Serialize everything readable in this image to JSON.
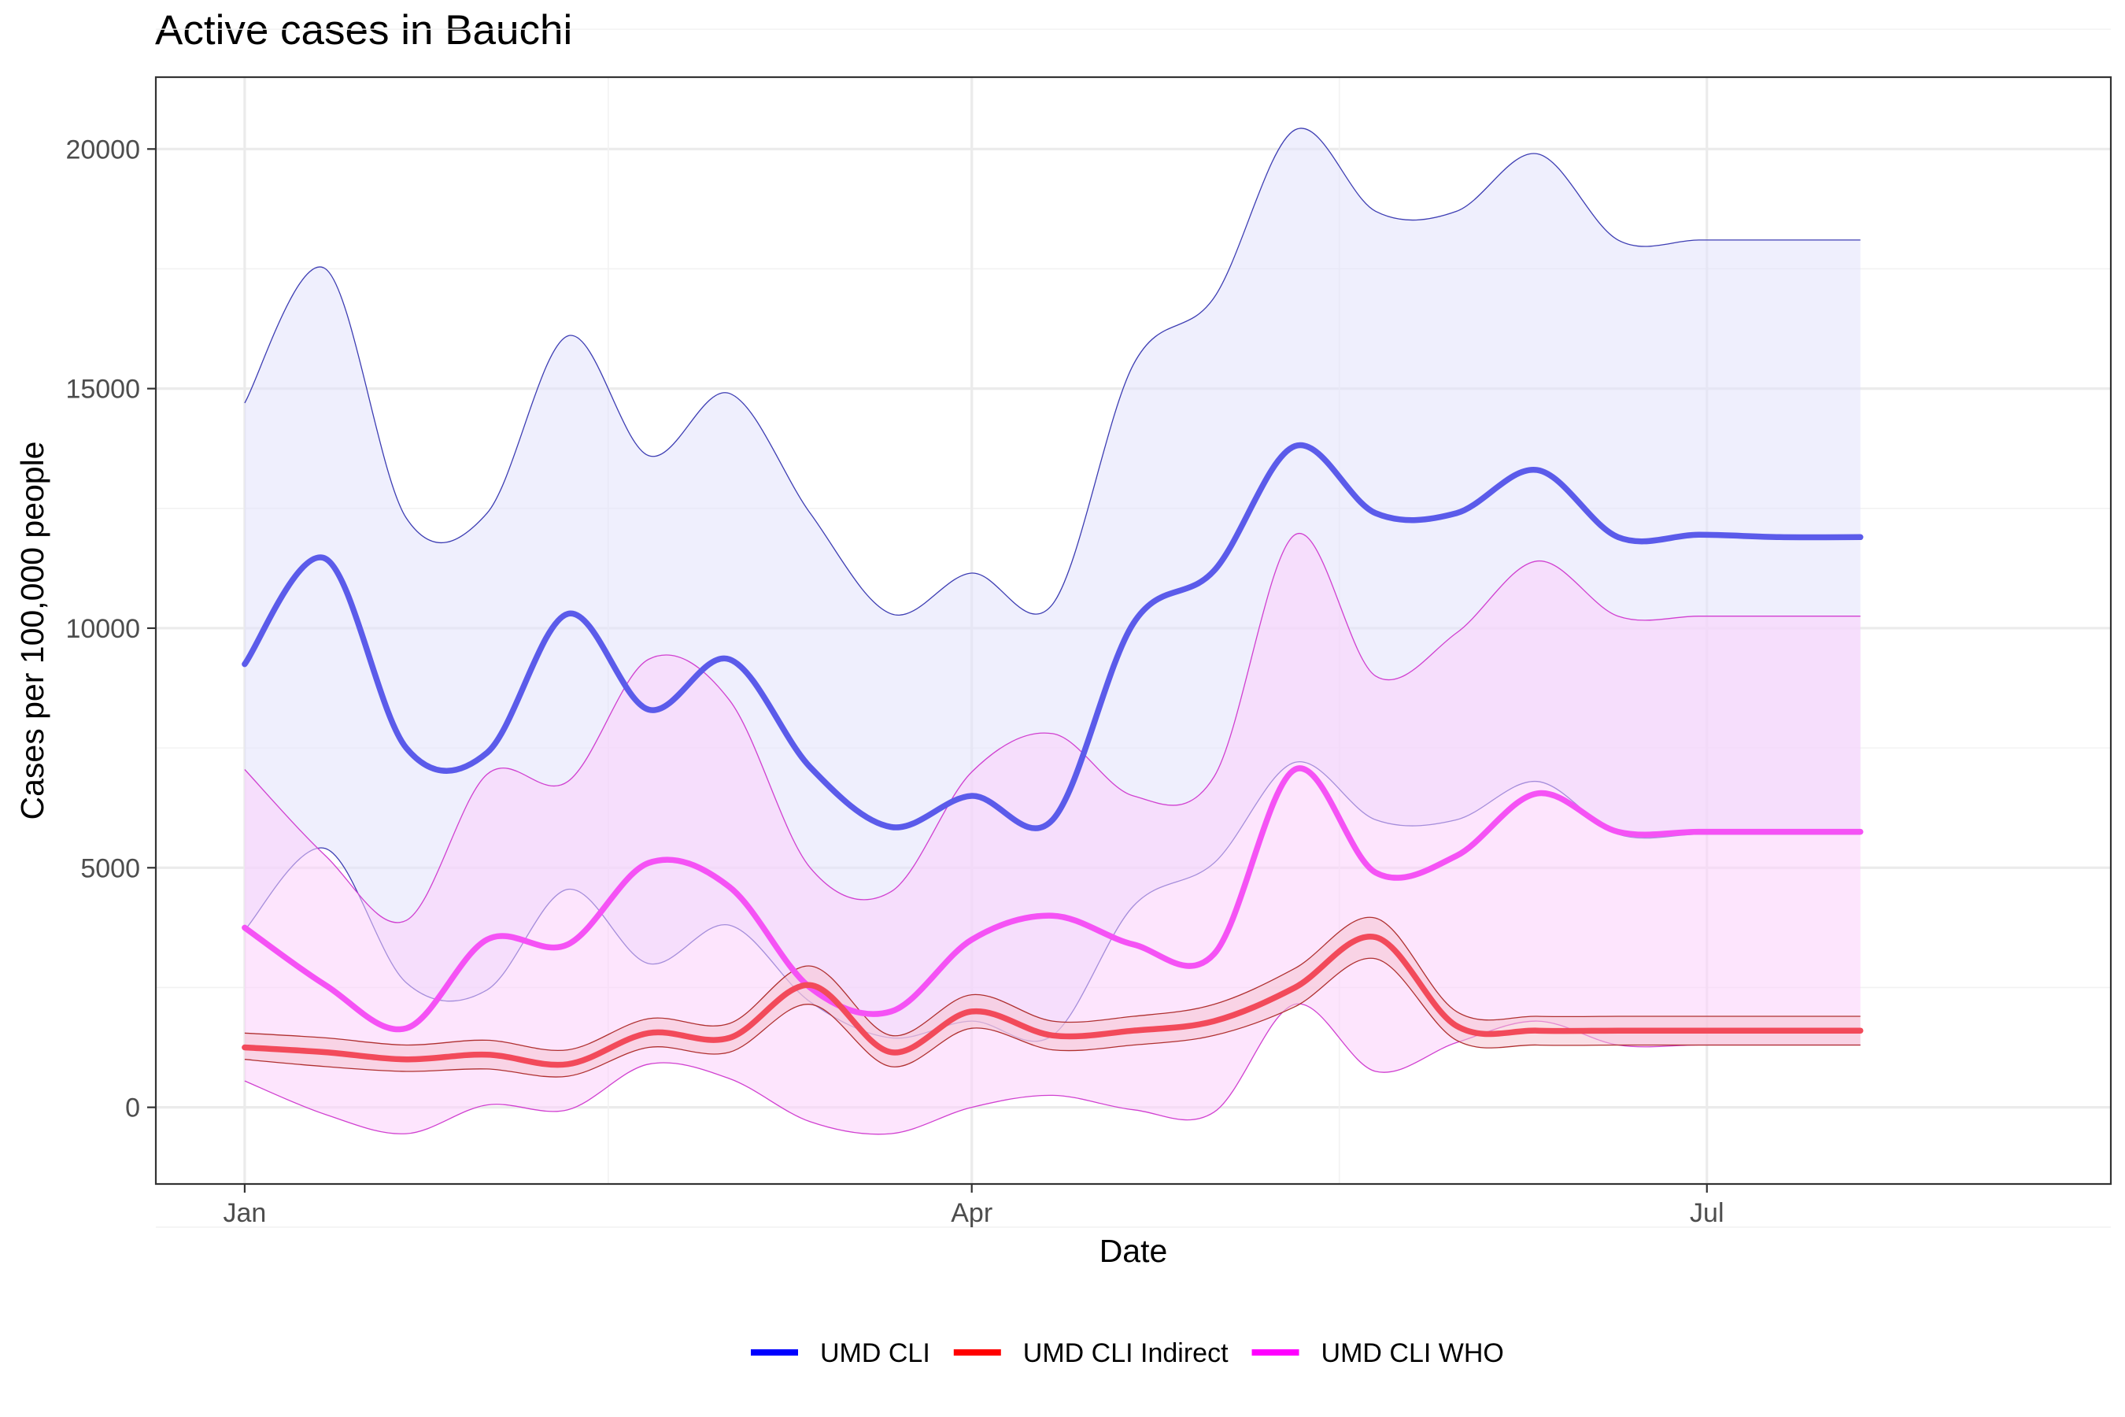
{
  "chart_data": {
    "type": "line",
    "title": "Active cases in Bauchi",
    "xlabel": "Date",
    "ylabel": "Cases per 100,000 people",
    "ylim": [
      -1600,
      21500
    ],
    "yticks": [
      0,
      5000,
      10000,
      15000,
      20000
    ],
    "xlim": [
      -11,
      231
    ],
    "xticks": [
      {
        "label": "Jan",
        "day": 0
      },
      {
        "label": "Apr",
        "day": 90
      },
      {
        "label": "Jul",
        "day": 181
      }
    ],
    "x_unit": "days since Jan 1",
    "grid": true,
    "legend": {
      "position": "bottom"
    },
    "x": [
      0,
      10,
      20,
      30,
      40,
      50,
      60,
      70,
      80,
      90,
      100,
      110,
      120,
      130,
      140,
      150,
      160,
      170,
      180,
      190,
      200
    ],
    "series": [
      {
        "name": "UMD CLI",
        "color": "#0000ff",
        "line_color": "#5b5bea",
        "band_color": "#e2e2fb",
        "band_edge_color": "#3d3db3",
        "mean": [
          9250,
          11450,
          7500,
          7400,
          10300,
          8300,
          9350,
          7100,
          5850,
          6500,
          6000,
          10100,
          11200,
          13800,
          12400,
          12400,
          13300,
          11900,
          11950,
          11900,
          11900
        ],
        "upper": [
          14700,
          17500,
          12300,
          12400,
          16100,
          13600,
          14900,
          12400,
          10300,
          11150,
          10500,
          15500,
          16900,
          20400,
          18700,
          18700,
          19900,
          18100,
          18100,
          18100,
          18100
        ],
        "lower": [
          3700,
          5400,
          2600,
          2450,
          4550,
          3000,
          3800,
          2200,
          1450,
          1800,
          1500,
          4200,
          5100,
          7200,
          6000,
          6000,
          6800,
          5700,
          5700,
          5700,
          5700
        ]
      },
      {
        "name": "UMD CLI Indirect",
        "color": "#ff0000",
        "line_color": "#f24a5a",
        "band_color": "#f5c5d1",
        "band_edge_color": "#b03030",
        "mean": [
          1250,
          1150,
          1000,
          1100,
          900,
          1550,
          1450,
          2550,
          1150,
          2000,
          1500,
          1600,
          1800,
          2500,
          3550,
          1700,
          1600,
          1600,
          1600,
          1600,
          1600
        ],
        "upper": [
          1550,
          1450,
          1300,
          1400,
          1200,
          1850,
          1750,
          2950,
          1500,
          2350,
          1800,
          1900,
          2150,
          2900,
          3950,
          2000,
          1900,
          1900,
          1900,
          1900,
          1900
        ],
        "lower": [
          1000,
          850,
          750,
          800,
          650,
          1250,
          1150,
          2150,
          850,
          1650,
          1200,
          1300,
          1500,
          2100,
          3100,
          1400,
          1300,
          1300,
          1300,
          1300,
          1300
        ]
      },
      {
        "name": "UMD CLI WHO",
        "color": "#ff00ff",
        "line_color": "#f552f5",
        "band_color": "#fbcffb",
        "band_edge_color": "#d040d0",
        "mean": [
          3750,
          2550,
          1650,
          3500,
          3400,
          5100,
          4600,
          2500,
          2000,
          3500,
          4000,
          3400,
          3200,
          7050,
          4900,
          5250,
          6550,
          5750,
          5750,
          5750,
          5750
        ],
        "upper": [
          7050,
          5250,
          3900,
          6950,
          6800,
          9350,
          8500,
          5000,
          4500,
          7000,
          7800,
          6500,
          6900,
          11950,
          9000,
          9900,
          11400,
          10250,
          10250,
          10250,
          10250
        ],
        "lower": [
          550,
          -150,
          -550,
          50,
          -50,
          900,
          600,
          -300,
          -550,
          0,
          250,
          -50,
          -100,
          2150,
          750,
          1350,
          1800,
          1300,
          1300,
          1300,
          1300
        ]
      }
    ]
  }
}
